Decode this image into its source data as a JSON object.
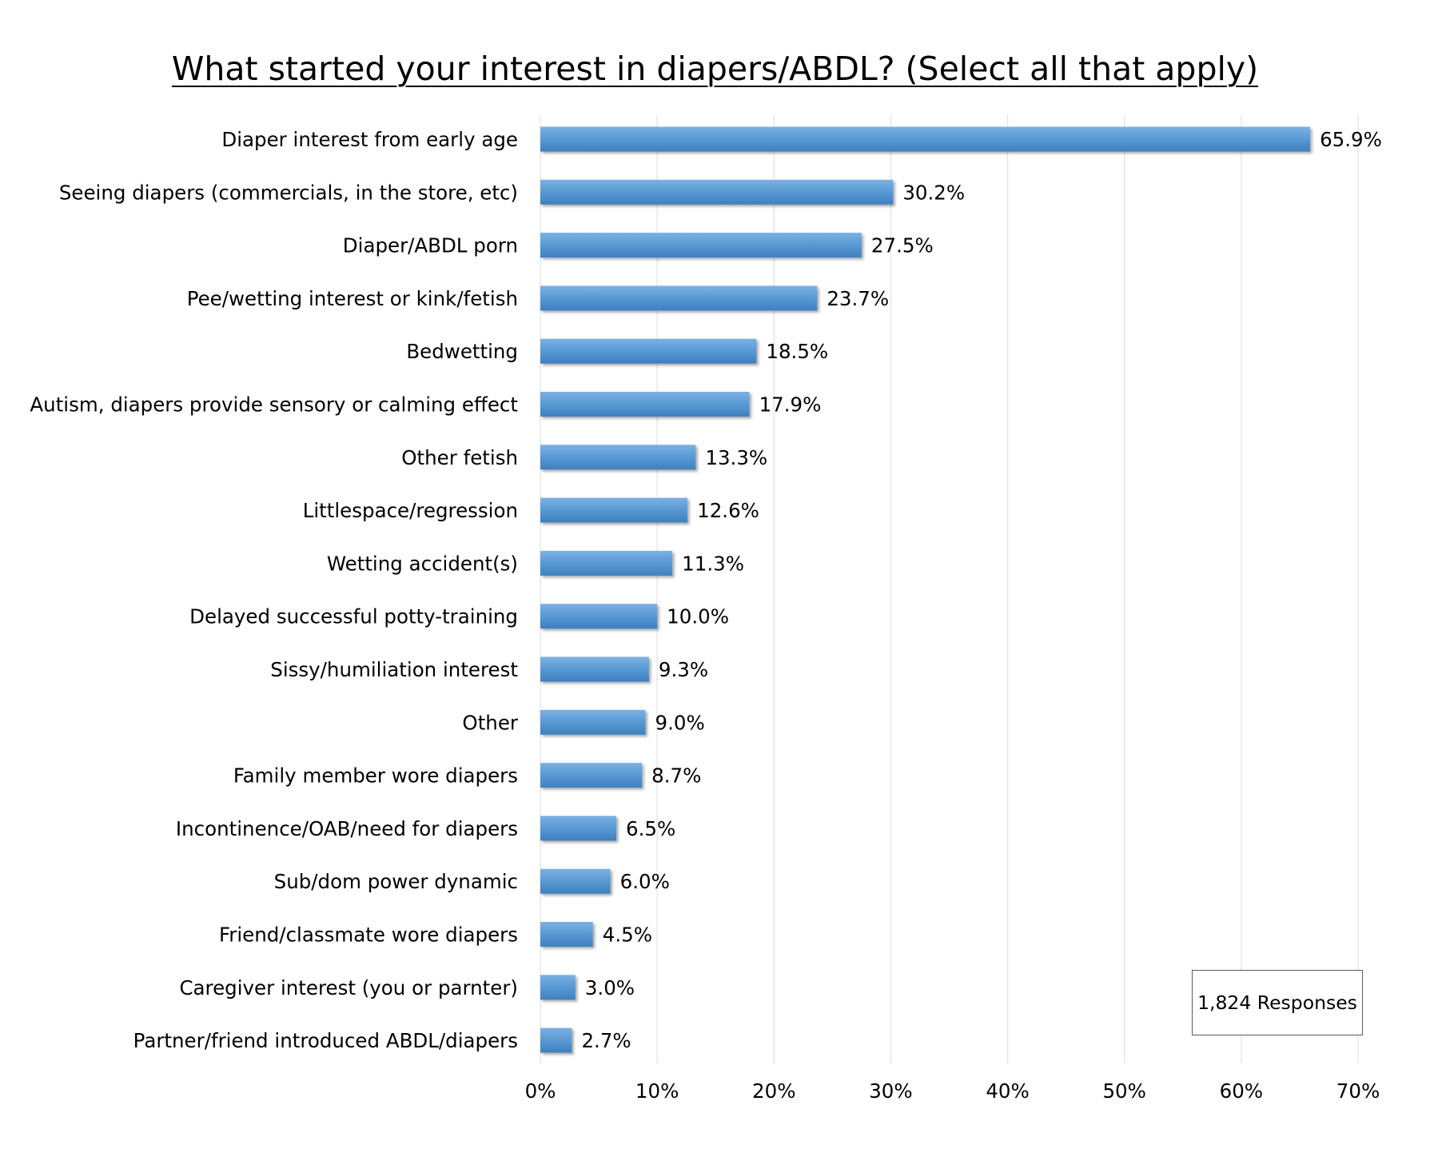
{
  "chart_data": {
    "type": "bar",
    "orientation": "horizontal",
    "title": "What started your interest in diapers/ABDL? (Select all that apply)",
    "categories": [
      "Diaper interest from early age",
      "Seeing diapers (commercials, in the store, etc)",
      "Diaper/ABDL porn",
      "Pee/wetting interest or kink/fetish",
      "Bedwetting",
      "Autism, diapers provide sensory or calming effect",
      "Other fetish",
      "Littlespace/regression",
      "Wetting accident(s)",
      "Delayed successful potty-training",
      "Sissy/humiliation interest",
      "Other",
      "Family member wore diapers",
      "Incontinence/OAB/need for diapers",
      "Sub/dom power dynamic",
      "Friend/classmate wore diapers",
      "Caregiver interest (you or parnter)",
      "Partner/friend introduced ABDL/diapers"
    ],
    "values": [
      65.9,
      30.2,
      27.5,
      23.7,
      18.5,
      17.9,
      13.3,
      12.6,
      11.3,
      10.0,
      9.3,
      9.0,
      8.7,
      6.5,
      6.0,
      4.5,
      3.0,
      2.7
    ],
    "value_labels": [
      "65.9%",
      "30.2%",
      "27.5%",
      "23.7%",
      "18.5%",
      "17.9%",
      "13.3%",
      "12.6%",
      "11.3%",
      "10.0%",
      "9.3%",
      "9.0%",
      "8.7%",
      "6.5%",
      "6.0%",
      "4.5%",
      "3.0%",
      "2.7%"
    ],
    "xlim": [
      0,
      70
    ],
    "x_ticks": [
      0,
      10,
      20,
      30,
      40,
      50,
      60,
      70
    ],
    "x_tick_labels": [
      "0%",
      "10%",
      "20%",
      "30%",
      "40%",
      "50%",
      "60%",
      "70%"
    ],
    "xlabel": "",
    "ylabel": "",
    "grid": "vertical",
    "bar_color": "#5b9bd5",
    "annotation": "1,824 Responses"
  }
}
